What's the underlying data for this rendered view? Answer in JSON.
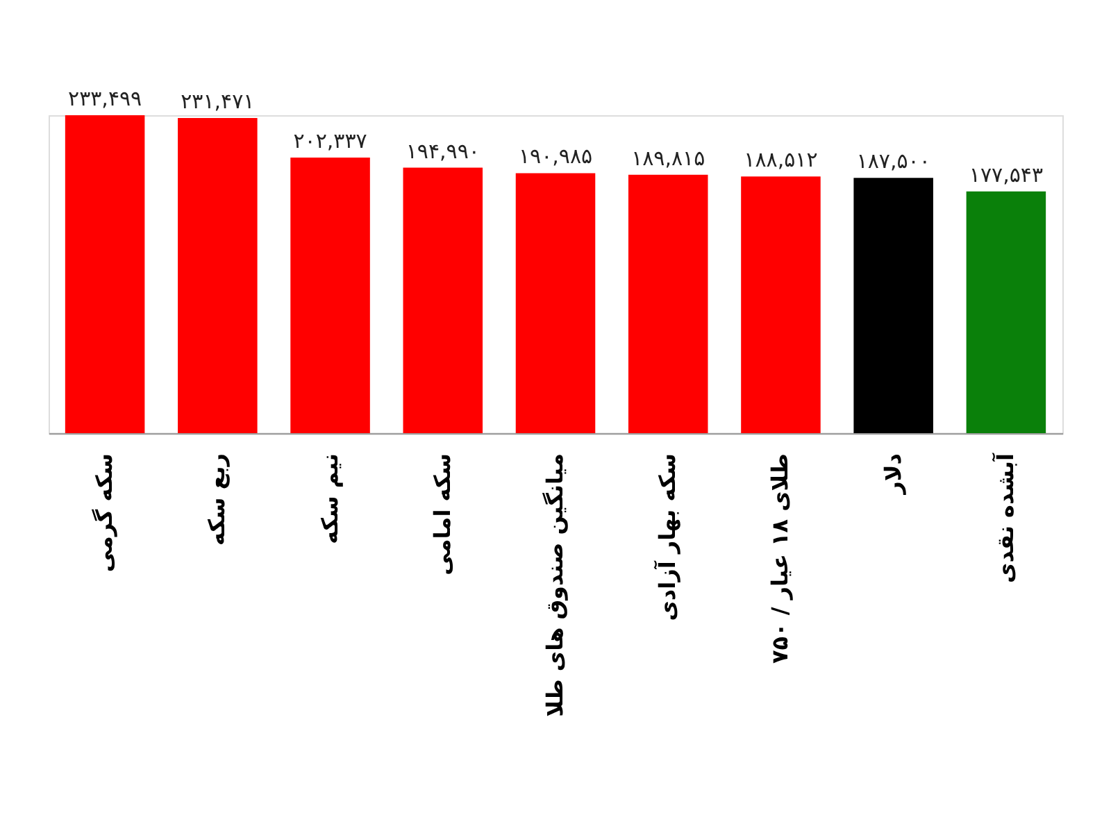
{
  "chart_data": {
    "type": "bar",
    "categories": [
      "سکه گرمی",
      "ربع سکه",
      "نیم سکه",
      "سکه امامی",
      "میانگین صندوق های طلا",
      "سکه بهار آزادی",
      "طلای ۱۸ عیار / ۷۵۰",
      "دلار",
      "آبشده نقدی"
    ],
    "values": [
      233499,
      231471,
      202337,
      194990,
      190985,
      189815,
      188512,
      187500,
      177543
    ],
    "colors": [
      "#ff0000",
      "#ff0000",
      "#ff0000",
      "#ff0000",
      "#ff0000",
      "#ff0000",
      "#ff0000",
      "#000000",
      "#0a800a"
    ],
    "value_labels": [
      "۲۳۳,۴۹۹",
      "۲۳۱,۴۷۱",
      "۲۰۲,۳۳۷",
      "۱۹۴,۹۹۰",
      "۱۹۰,۹۸۵",
      "۱۸۹,۸۱۵",
      "۱۸۸,۵۱۲",
      "۱۸۷,۵۰۰",
      "۱۷۷,۵۴۳"
    ],
    "tick_labels": "x",
    "grid": false
  }
}
